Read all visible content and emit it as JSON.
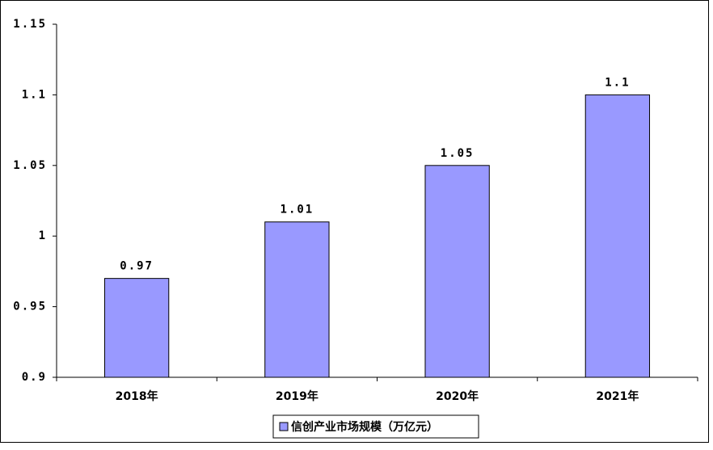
{
  "chart_data": {
    "type": "bar",
    "categories": [
      "2018年",
      "2019年",
      "2020年",
      "2021年"
    ],
    "series": [
      {
        "name": "信创产业市场规模（万亿元）",
        "color": "#9999ff",
        "values": [
          0.97,
          1.01,
          1.05,
          1.1
        ]
      }
    ],
    "ylim": [
      0.9,
      1.15
    ],
    "yticks": [
      0.9,
      0.95,
      1,
      1.05,
      1.1,
      1.15
    ],
    "legend": "bottom"
  }
}
